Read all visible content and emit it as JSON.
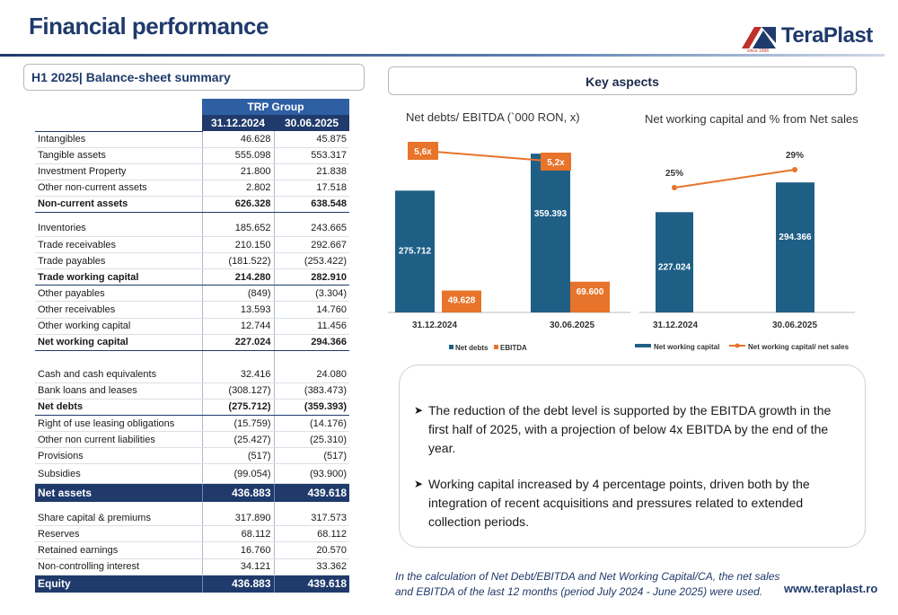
{
  "page": {
    "title": "Financial performance",
    "logo_text": "TeraPlast",
    "logo_sub": "since 1896",
    "left_heading": "H1 2025| Balance-sheet summary",
    "right_heading": "Key aspects",
    "website": "www.teraplast.ro"
  },
  "table": {
    "group": "TRP Group",
    "col1": "31.12.2024",
    "col2": "30.06.2025",
    "rows": [
      {
        "label": "Intangibles",
        "v1": "46.628",
        "v2": "45.875"
      },
      {
        "label": "Tangible assets",
        "v1": "555.098",
        "v2": "553.317"
      },
      {
        "label": "Investment Property",
        "v1": "21.800",
        "v2": "21.838"
      },
      {
        "label": "Other non-current assets",
        "v1": "2.802",
        "v2": "17.518"
      },
      {
        "label": "Non-current assets",
        "v1": "626.328",
        "v2": "638.548"
      },
      {
        "label": "Inventories",
        "v1": "185.652",
        "v2": "243.665"
      },
      {
        "label": "Trade receivables",
        "v1": "210.150",
        "v2": "292.667"
      },
      {
        "label": "Trade payables",
        "v1": "(181.522)",
        "v2": "(253.422)"
      },
      {
        "label": "Trade working capital",
        "v1": "214.280",
        "v2": "282.910"
      },
      {
        "label": "Other payables",
        "v1": "(849)",
        "v2": "(3.304)"
      },
      {
        "label": "Other receivables",
        "v1": "13.593",
        "v2": "14.760"
      },
      {
        "label": "Other working capital",
        "v1": "12.744",
        "v2": "11.456"
      },
      {
        "label": "Net working capital",
        "v1": "227.024",
        "v2": "294.366"
      },
      {
        "label": "Cash and cash equivalents",
        "v1": "32.416",
        "v2": "24.080"
      },
      {
        "label": "Bank loans and leases",
        "v1": "(308.127)",
        "v2": "(383.473)"
      },
      {
        "label": "Net debts",
        "v1": "(275.712)",
        "v2": "(359.393)"
      },
      {
        "label": "Right of use leasing obligations",
        "v1": "(15.759)",
        "v2": "(14.176)"
      },
      {
        "label": "Other non current liabilities",
        "v1": "(25.427)",
        "v2": "(25.310)"
      },
      {
        "label": "Provisions",
        "v1": "(517)",
        "v2": "(517)"
      },
      {
        "label": "Subsidies",
        "v1": "(99.054)",
        "v2": "(93.900)"
      },
      {
        "label": "Net assets",
        "v1": "436.883",
        "v2": "439.618"
      },
      {
        "label": "Share capital & premiums",
        "v1": "317.890",
        "v2": "317.573"
      },
      {
        "label": "Reserves",
        "v1": "68.112",
        "v2": "68.112"
      },
      {
        "label": "Retained earnings",
        "v1": "16.760",
        "v2": "20.570"
      },
      {
        "label": "Non-controlling interest",
        "v1": "34.121",
        "v2": "33.362"
      },
      {
        "label": "Equity",
        "v1": "436.883",
        "v2": "439.618"
      }
    ]
  },
  "chart_data": [
    {
      "type": "bar",
      "title": "Net debts/ EBITDA (`000 RON, x)",
      "categories": [
        "31.12.2024",
        "30.06.2025"
      ],
      "series": [
        {
          "name": "Net debts",
          "values": [
            275.712,
            359.393
          ],
          "labels": [
            "275.712",
            "359.393"
          ],
          "color": "#1f5f86"
        },
        {
          "name": "EBITDA",
          "values": [
            49.628,
            69.6
          ],
          "labels": [
            "49.628",
            "69.600"
          ],
          "color": "#e8732a"
        }
      ],
      "line": {
        "values": [
          5.6,
          5.2
        ],
        "labels": [
          "5,6x",
          "5,2x"
        ],
        "color": "#e8732a"
      },
      "legend": [
        "Net debts",
        "EBITDA"
      ],
      "legend_position": "bottom"
    },
    {
      "type": "bar",
      "title": "Net working capital and % from Net sales",
      "categories": [
        "31.12.2024",
        "30.06.2025"
      ],
      "series": [
        {
          "name": "Net working capital",
          "values": [
            227.024,
            294.366
          ],
          "labels": [
            "227.024",
            "294.366"
          ],
          "color": "#1f5f86"
        }
      ],
      "line": {
        "name": "Net working capital/ net sales",
        "values": [
          25,
          29
        ],
        "labels": [
          "25%",
          "29%"
        ],
        "color": "#e8732a"
      },
      "legend": [
        "Net working capital",
        "Net working capital/ net sales"
      ],
      "legend_position": "bottom"
    }
  ],
  "notes": {
    "b1": "The reduction of the debt level is supported by the EBITDA growth in the first half of 2025, with a projection of below 4x EBITDA by the end of the year.",
    "b2": "Working capital increased by 4 percentage points, driven both by the integration of recent acquisitions and pressures related to extended collection periods.",
    "footnote": "In the calculation of Net Debt/EBITDA and Net Working Capital/CA, the net sales and EBITDA of the last 12 months (period July 2024 - June 2025) were used."
  },
  "icons": {
    "bullet": "arrow-right-icon",
    "logo": "teraplast-logo-icon"
  }
}
